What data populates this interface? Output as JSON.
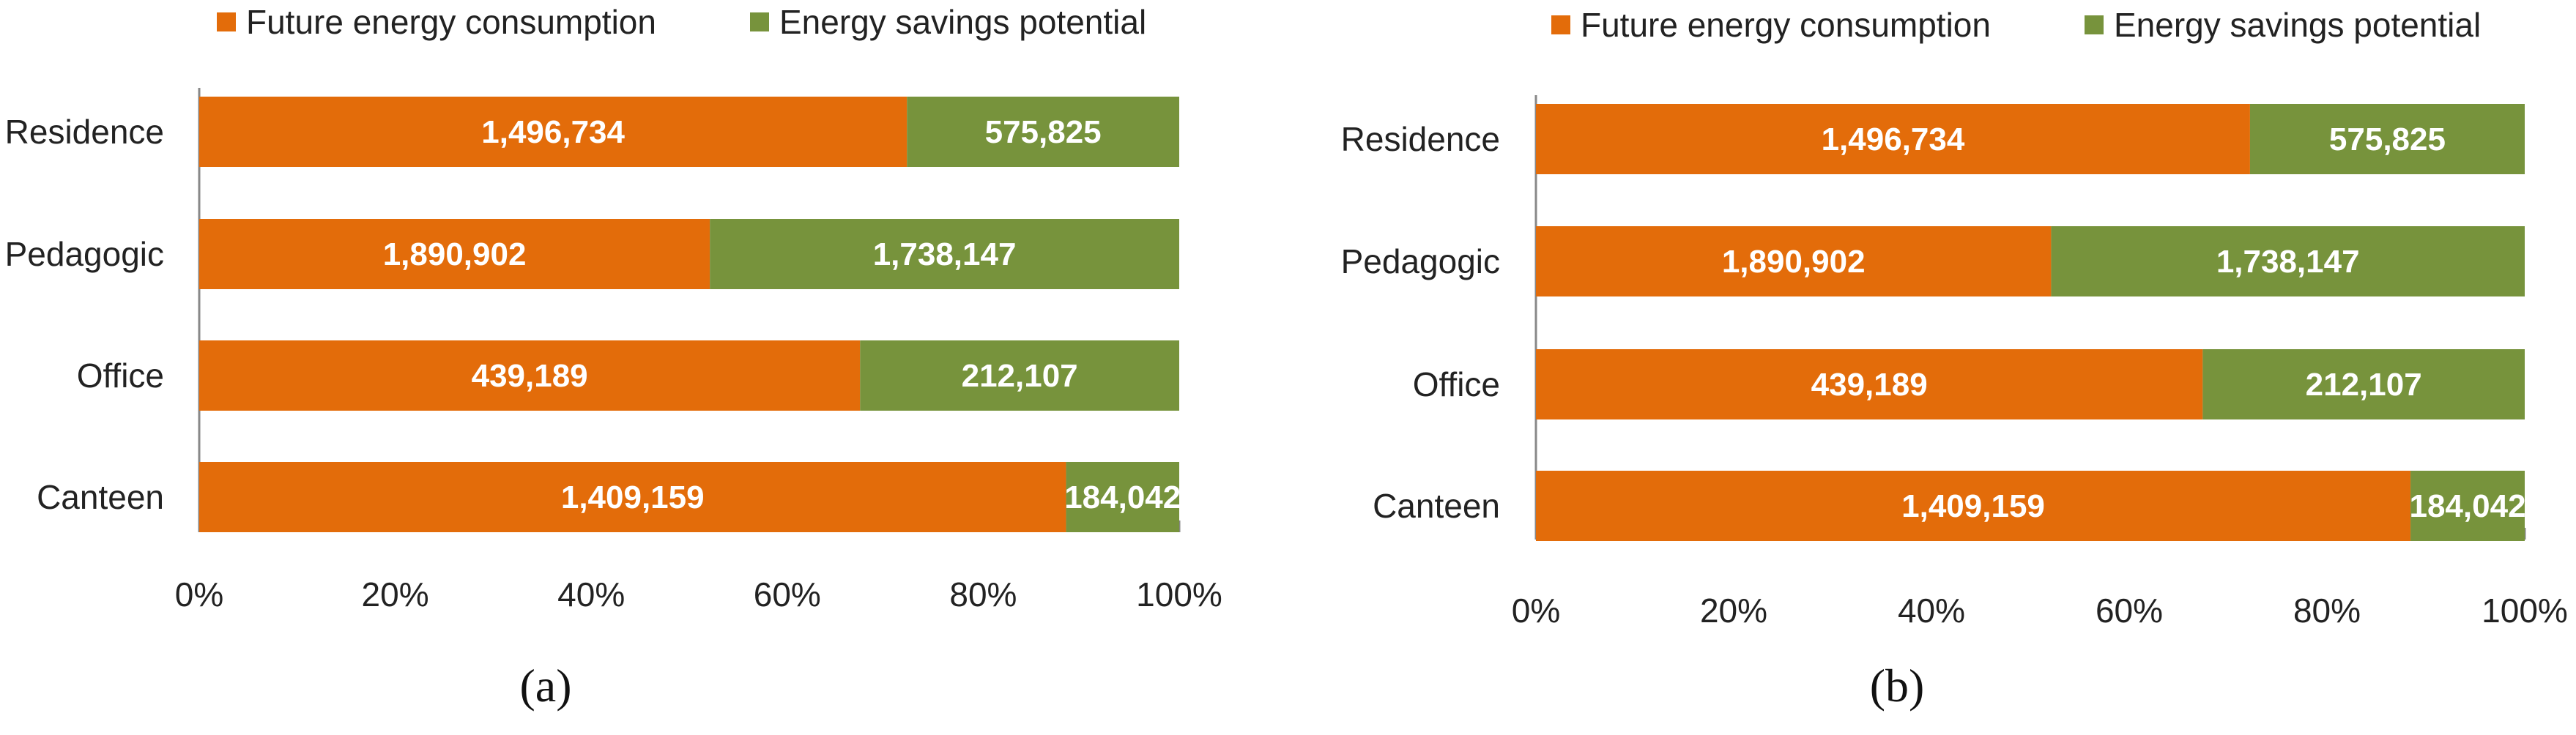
{
  "colors": {
    "future": "#e36c0a",
    "savings": "#77933c",
    "axis": "#888888",
    "text": "#222222"
  },
  "chart_data": [
    {
      "type": "bar",
      "orientation": "horizontal",
      "stacking": "percent",
      "panel_label": "(a)",
      "categories": [
        "Residence",
        "Pedagogic",
        "Office",
        "Canteen"
      ],
      "series": [
        {
          "name": "Future energy consumption",
          "values": [
            1496734,
            1890902,
            439189,
            1409159
          ],
          "labels": [
            "1,496,734",
            "1,890,902",
            "439,189",
            "1,409,159"
          ]
        },
        {
          "name": "Energy savings potential",
          "values": [
            575825,
            1738147,
            212107,
            184042
          ],
          "labels": [
            "575,825",
            "1,738,147",
            "212,107",
            "184,042"
          ]
        }
      ],
      "xticks": [
        "0%",
        "20%",
        "40%",
        "60%",
        "80%",
        "100%"
      ],
      "xlim": [
        0,
        100
      ],
      "grid": false,
      "legend": "top"
    },
    {
      "type": "bar",
      "orientation": "horizontal",
      "stacking": "percent",
      "panel_label": "(b)",
      "categories": [
        "Residence",
        "Pedagogic",
        "Office",
        "Canteen"
      ],
      "series": [
        {
          "name": "Future energy consumption",
          "values": [
            1496734,
            1890902,
            439189,
            1409159
          ],
          "labels": [
            "1,496,734",
            "1,890,902",
            "439,189",
            "1,409,159"
          ]
        },
        {
          "name": "Energy savings potential",
          "values": [
            575825,
            1738147,
            212107,
            184042
          ],
          "labels": [
            "575,825",
            "1,738,147",
            "212,107",
            "184,042"
          ]
        }
      ],
      "xticks": [
        "0%",
        "20%",
        "40%",
        "60%",
        "80%",
        "100%"
      ],
      "xlim": [
        0,
        100
      ],
      "grid": false,
      "legend": "top"
    }
  ]
}
